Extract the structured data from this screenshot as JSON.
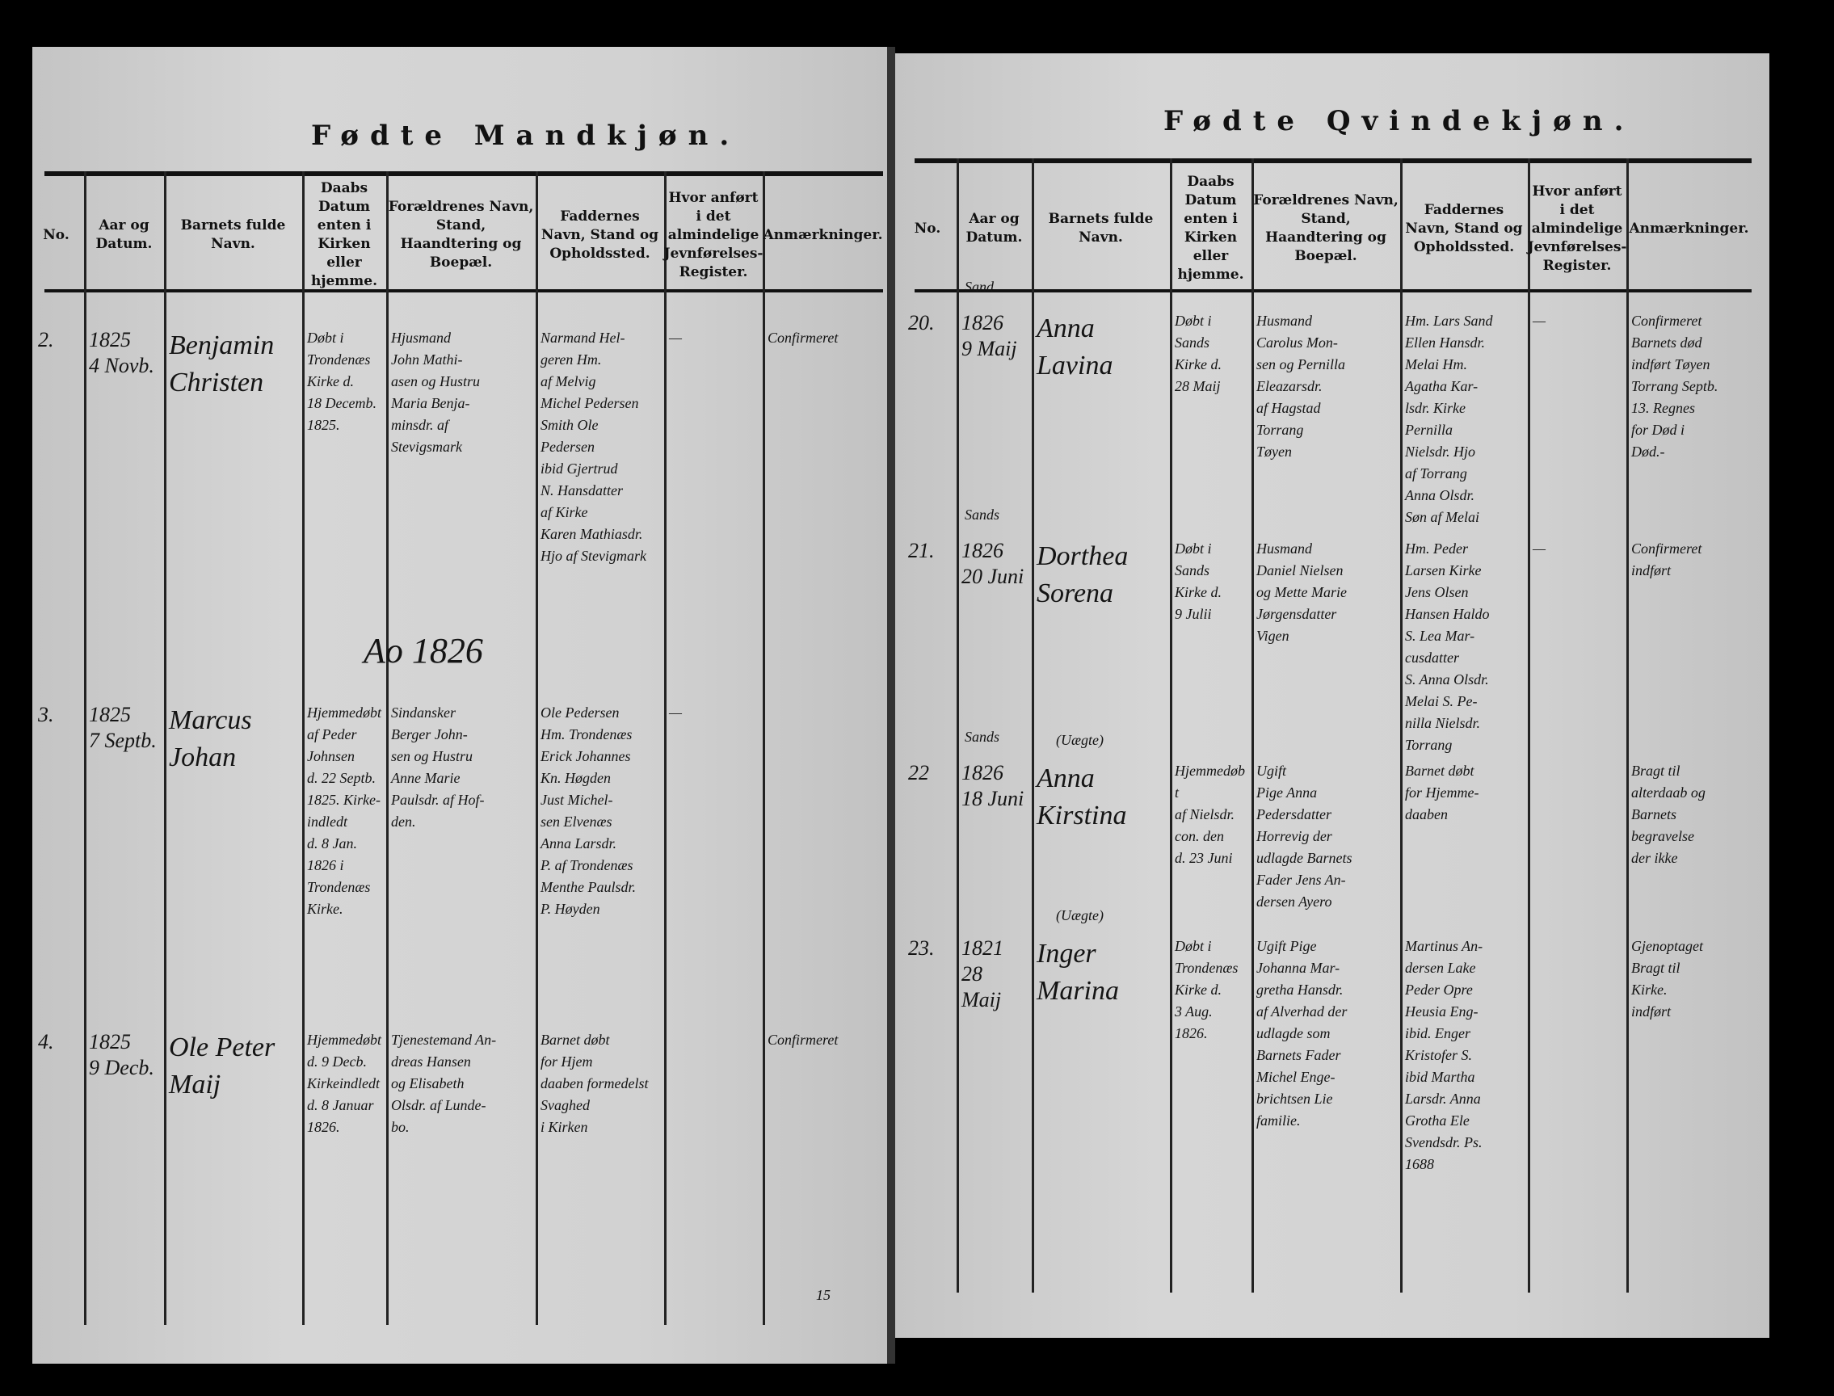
{
  "left_page": {
    "title": "Fødte Mandkjøn.",
    "headers": [
      "No.",
      "Aar og Datum.",
      "Barnets fulde Navn.",
      "Daabs Datum enten i Kirken eller hjemme.",
      "Forældrenes Navn, Stand, Haandtering og Boepæl.",
      "Faddernes Navn, Stand og Opholdssted.",
      "Hvor anført i det almindelige Jevnførelses-Register.",
      "Anmærkninger."
    ],
    "year_note": "Ao 1826",
    "entries": [
      {
        "no": "2.",
        "date": "1825\n4 Novb.",
        "name": "Benjamin\nChristen",
        "baptism": "Døbt i\nTrondenæs\nKirke d.\n18 Decemb.\n1825.",
        "parents": "Hjusmand\nJohn Mathi-\nasen og Hustru\nMaria Benja-\nminsdr. af\nStevigsmark",
        "sponsors": "Narmand Hel-\ngeren Hm.\naf Melvig\nMichel Pedersen\nSmith Ole\nPedersen\nibid Gjertrud\nN. Hansdatter\naf Kirke\nKaren Mathiasdr.\nHjo af Stevigmark",
        "register": "—",
        "remarks": "Confirmeret"
      },
      {
        "no": "3.",
        "date": "1825\n7 Septb.",
        "name": "Marcus\nJohan",
        "baptism": "Hjemmedøbt\naf Peder\nJohnsen\nd. 22 Septb.\n1825. Kirke-\nindledt\nd. 8 Jan.\n1826 i\nTrondenæs\nKirke.",
        "parents": "Sindansker\nBerger John-\nsen og Hustru\nAnne Marie\nPaulsdr. af Hof-\nden.",
        "sponsors": "Ole Pedersen\nHm. Trondenæs\nErick Johannes\nKn. Høgden\nJust Michel-\nsen Elvenæs\nAnna Larsdr.\nP. af Trondenæs\nMenthe Paulsdr.\nP. Høyden",
        "register": "—",
        "remarks": ""
      },
      {
        "no": "4.",
        "date": "1825\n9 Decb.",
        "name": "Ole Peter\nMaij",
        "baptism": "Hjemmedøbt\nd. 9 Decb.\nKirkeindledt\nd. 8 Januar\n1826.",
        "parents": "Tjenestemand An-\ndreas Hansen\nog Elisabeth\nOlsdr. af Lunde-\nbo.",
        "sponsors": "Barnet døbt\nfor Hjem\ndaaben formedelst\nSvaghed\ni Kirken",
        "register": "",
        "remarks": "Confirmeret"
      }
    ],
    "footer_mark": "15"
  },
  "right_page": {
    "title": "Fødte Qvindekjøn.",
    "headers": [
      "No.",
      "Aar og Datum.",
      "Barnets fulde Navn.",
      "Daabs Datum enten i Kirken eller hjemme.",
      "Forældrenes Navn, Stand, Haandtering og Boepæl.",
      "Faddernes Navn, Stand og Opholdssted.",
      "Hvor anført i det almindelige Jevnførelses-Register.",
      "Anmærkninger."
    ],
    "entries": [
      {
        "no": "20.",
        "place": "Sand",
        "date": "1826\n9 Maij",
        "name": "Anna\nLavina",
        "baptism": "Døbt i\nSands\nKirke d.\n28 Maij",
        "parents": "Husmand\nCarolus Mon-\nsen og Pernilla\nEleazarsdr.\naf Hagstad\nTorrang\nTøyen",
        "sponsors": "Hm. Lars Sand\nEllen Hansdr.\nMelai Hm.\nAgatha Kar-\nlsdr. Kirke\nPernilla\nNielsdr. Hjo\naf Torrang\nAnna Olsdr.\nSøn af Melai",
        "register": "—",
        "remarks": "Confirmeret\nBarnets død\nindført Tøyen\nTorrang Septb.\n13. Regnes\nfor Død i\nDød.-"
      },
      {
        "no": "21.",
        "place": "Sands",
        "date": "1826\n20 Juni",
        "name": "Dorthea\nSorena",
        "baptism": "Døbt i\nSands\nKirke d.\n9 Julii",
        "parents": "Husmand\nDaniel Nielsen\nog Mette Marie\nJørgensdatter\nVigen",
        "sponsors": "Hm. Peder\nLarsen Kirke\nJens Olsen\nHansen Haldo\nS. Lea Mar-\ncusdatter\nS. Anna Olsdr.\nMelai S. Pe-\nnilla Nielsdr.\nTorrang",
        "register": "—",
        "remarks": "Confirmeret\nindført"
      },
      {
        "no": "22",
        "place": "Sands",
        "note": "(Uægte)",
        "date": "1826\n18 Juni",
        "name": "Anna\nKirstina",
        "baptism": "Hjemmedøbt\naf Nielsdr.\ncon. den\nd. 23 Juni",
        "parents": "Ugift\nPige Anna\nPedersdatter\nHorrevig der\nudlagde Barnets\nFader Jens An-\ndersen Ayero",
        "sponsors": "Barnet døbt\nfor Hjemme-\ndaaben",
        "register": "",
        "remarks": "Bragt til\nalterdaab og\nBarnets\nbegravelse\nder ikke"
      },
      {
        "no": "23.",
        "place": "",
        "note": "(Uægte)",
        "date": "1821\n28 Maij",
        "name": "Inger\nMarina",
        "baptism": "Døbt i\nTrondenæs\nKirke d.\n3 Aug.\n1826.",
        "parents": "Ugift Pige\nJohanna Mar-\ngretha Hansdr.\naf Alverhad der\nudlagde som\nBarnets Fader\nMichel Enge-\nbrichtsen Lie\nfamilie.",
        "sponsors": "Martinus An-\ndersen Lake\nPeder Opre\nHeusia Eng-\nibid. Enger\nKristofer S.\nibid Martha\nLarsdr. Anna\nGrotha Ele\nSvendsdr. Ps.\n1688",
        "register": "",
        "remarks": "Gjenoptaget\nBragt til\nKirke.\nindført"
      }
    ]
  }
}
